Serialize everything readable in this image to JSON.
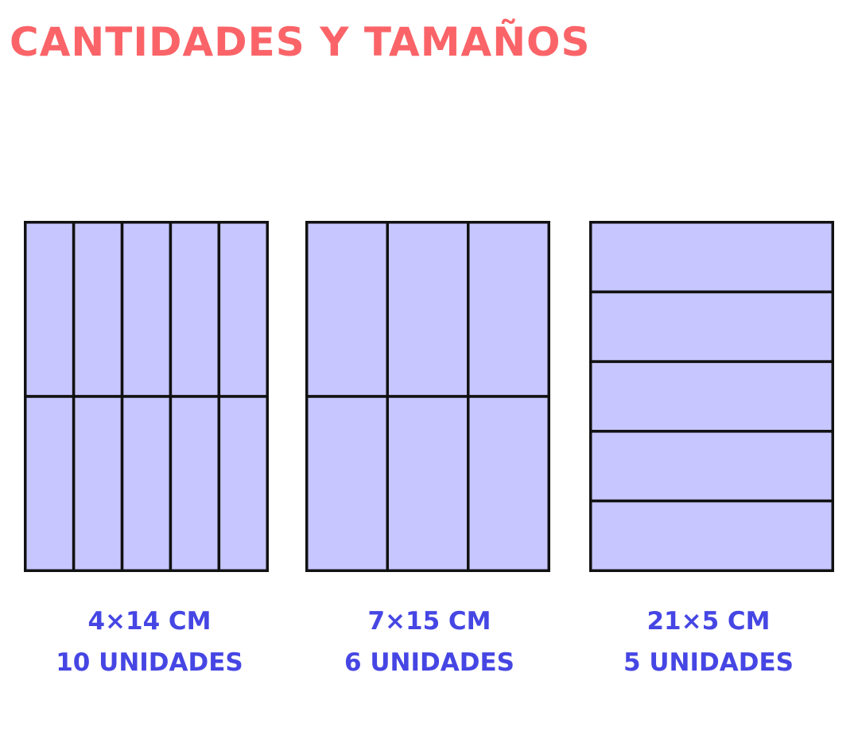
{
  "title": "CANTIDADES Y TAMAÑOS",
  "colors": {
    "title": "#fa6468",
    "caption": "#4646e4",
    "fill": "#c7c6fe",
    "stroke": "#111111"
  },
  "sheets": [
    {
      "size_label": "4×14 CM",
      "count_label": "10 UNIDADES",
      "columns": 5,
      "rows": 2
    },
    {
      "size_label": "7×15 CM",
      "count_label": "6 UNIDADES",
      "columns": 3,
      "rows": 2
    },
    {
      "size_label": "21×5 CM",
      "count_label": "5 UNIDADES",
      "columns": 1,
      "rows": 5
    }
  ]
}
